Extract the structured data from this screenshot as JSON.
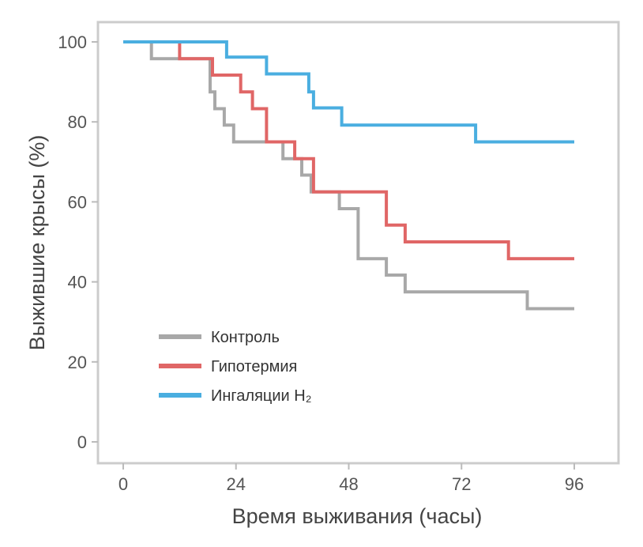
{
  "chart_data": {
    "type": "line",
    "step": true,
    "xlabel": "Время выживания (часы)",
    "ylabel": "Выжившие крысы (%)",
    "xlim": [
      -5,
      105
    ],
    "ylim": [
      -5,
      103
    ],
    "xticks": [
      0,
      24,
      48,
      72,
      96
    ],
    "yticks": [
      0,
      20,
      40,
      60,
      80,
      100
    ],
    "grid": false,
    "legend": {
      "position": "lower-left"
    },
    "series": [
      {
        "name": "Контроль",
        "color": "#a8a8a8",
        "points": [
          [
            0,
            100
          ],
          [
            6,
            100
          ],
          [
            6,
            95.8
          ],
          [
            18.5,
            95.8
          ],
          [
            18.5,
            87.5
          ],
          [
            19.5,
            87.5
          ],
          [
            19.5,
            83.3
          ],
          [
            21.5,
            83.3
          ],
          [
            21.5,
            79.2
          ],
          [
            23.5,
            79.2
          ],
          [
            23.5,
            75
          ],
          [
            34,
            75
          ],
          [
            34,
            70.8
          ],
          [
            38,
            70.8
          ],
          [
            38,
            66.7
          ],
          [
            40,
            66.7
          ],
          [
            40,
            62.5
          ],
          [
            46,
            62.5
          ],
          [
            46,
            58.3
          ],
          [
            50,
            58.3
          ],
          [
            50,
            45.8
          ],
          [
            56,
            45.8
          ],
          [
            56,
            41.7
          ],
          [
            60,
            41.7
          ],
          [
            60,
            37.5
          ],
          [
            86,
            37.5
          ],
          [
            86,
            33.3
          ],
          [
            96,
            33.3
          ]
        ]
      },
      {
        "name": "Гипотермия",
        "color": "#e06666",
        "points": [
          [
            0,
            100
          ],
          [
            12,
            100
          ],
          [
            12,
            95.8
          ],
          [
            19,
            95.8
          ],
          [
            19,
            91.7
          ],
          [
            25,
            91.7
          ],
          [
            25,
            87.5
          ],
          [
            27.5,
            87.5
          ],
          [
            27.5,
            83.3
          ],
          [
            30.5,
            83.3
          ],
          [
            30.5,
            75
          ],
          [
            36.5,
            75
          ],
          [
            36.5,
            70.8
          ],
          [
            40.5,
            70.8
          ],
          [
            40.5,
            62.5
          ],
          [
            56,
            62.5
          ],
          [
            56,
            54.2
          ],
          [
            60,
            54.2
          ],
          [
            60,
            50
          ],
          [
            82,
            50
          ],
          [
            82,
            45.8
          ],
          [
            96,
            45.8
          ]
        ]
      },
      {
        "name": "Ингаляции H₂",
        "color": "#4aaee0",
        "points": [
          [
            0,
            100
          ],
          [
            22,
            100
          ],
          [
            22,
            96.2
          ],
          [
            30.5,
            96.2
          ],
          [
            30.5,
            92
          ],
          [
            39.5,
            92
          ],
          [
            39.5,
            87.5
          ],
          [
            40.5,
            87.5
          ],
          [
            40.5,
            83.5
          ],
          [
            46.5,
            83.5
          ],
          [
            46.5,
            79.2
          ],
          [
            75,
            79.2
          ],
          [
            75,
            75
          ],
          [
            96,
            75
          ]
        ]
      }
    ]
  }
}
